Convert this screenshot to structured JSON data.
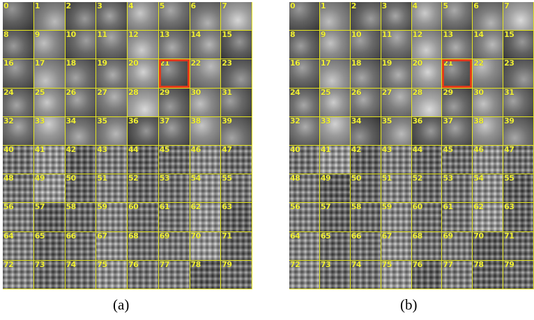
{
  "panels": [
    {
      "id": "a",
      "caption": "(a)",
      "labels": [
        "0",
        "1",
        "2",
        "3",
        "4",
        "5",
        "6",
        "7",
        "8",
        "9",
        "10",
        "11",
        "12",
        "13",
        "14",
        "15",
        "16",
        "17",
        "18",
        "19",
        "20",
        "21",
        "22",
        "23",
        "24",
        "25",
        "26",
        "27",
        "28",
        "29",
        "30",
        "31",
        "32",
        "33",
        "34",
        "35",
        "36",
        "37",
        "38",
        "39",
        "40",
        "41",
        "42",
        "43",
        "44",
        "45",
        "46",
        "47",
        "48",
        "49",
        "50",
        "51",
        "52",
        "53",
        "54",
        "55",
        "56",
        "57",
        "58",
        "59",
        "60",
        "61",
        "62",
        "63",
        "64",
        "65",
        "66",
        "67",
        "68",
        "69",
        "70",
        "71",
        "72",
        "73",
        "74",
        "75",
        "76",
        "77",
        "78",
        "79"
      ],
      "highlighted": "21"
    },
    {
      "id": "b",
      "caption": "(b)",
      "labels": [
        "0",
        "1",
        "2",
        "3",
        "4",
        "5",
        "6",
        "7",
        "8",
        "9",
        "10",
        "11",
        "12",
        "13",
        "14",
        "15",
        "16",
        "17",
        "18",
        "19",
        "20",
        "21",
        "22",
        "23",
        "24",
        "25",
        "26",
        "27",
        "28",
        "29",
        "30",
        "31",
        "32",
        "33",
        "34",
        "35",
        "36",
        "37",
        "38",
        "39",
        "40",
        "41",
        "42",
        "43",
        "44",
        "45",
        "46",
        "47",
        "48",
        "49",
        "50",
        "51",
        "52",
        "53",
        "54",
        "55",
        "56",
        "57",
        "58",
        "59",
        "60",
        "61",
        "62",
        "63",
        "64",
        "65",
        "66",
        "67",
        "68",
        "69",
        "70",
        "71",
        "72",
        "73",
        "74",
        "75",
        "76",
        "77",
        "78",
        "79"
      ],
      "highlighted": "21"
    }
  ],
  "colors": {
    "grid_line": "#e6e61e",
    "label": "#f0f032",
    "highlight": "#e03b1a"
  }
}
